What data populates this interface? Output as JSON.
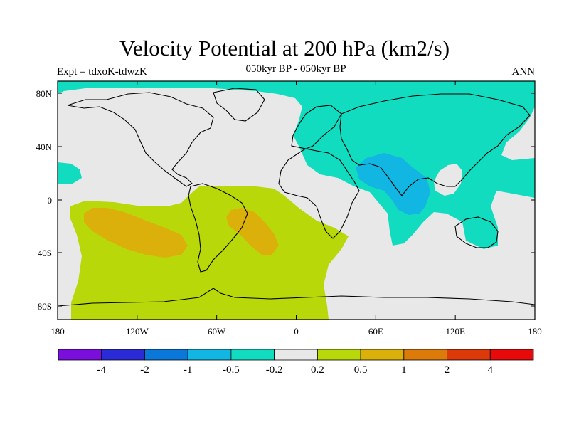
{
  "title": "Velocity Potential at 200 hPa (km2/s)",
  "subtitle": "050kyr BP - 050kyr BP",
  "left_label": "Expt = tdxoK-tdwzK",
  "right_label": "ANN",
  "y_ticks": [
    "80N",
    "40N",
    "0",
    "40S",
    "80S"
  ],
  "x_ticks": [
    "180",
    "120W",
    "60W",
    "0",
    "60E",
    "120E",
    "180"
  ],
  "colorbar": {
    "colors": [
      "#7a0fdc",
      "#2a2ad6",
      "#0a78d8",
      "#12b6e2",
      "#12dcc0",
      "#e8e8e8",
      "#b8d80a",
      "#dcb00a",
      "#dc7a0a",
      "#dc3a0a",
      "#e80a0a"
    ],
    "labels": [
      "-4",
      "-2",
      "-1",
      "-0.5",
      "-0.2",
      "0.2",
      "0.5",
      "1",
      "2",
      "4"
    ]
  },
  "field_colors": {
    "background": "#e8e8e8",
    "negative_weak": "#12dcc0",
    "negative_moderate": "#12b6e2",
    "positive_weak": "#b8d80a",
    "positive_moderate": "#dcb00a"
  }
}
